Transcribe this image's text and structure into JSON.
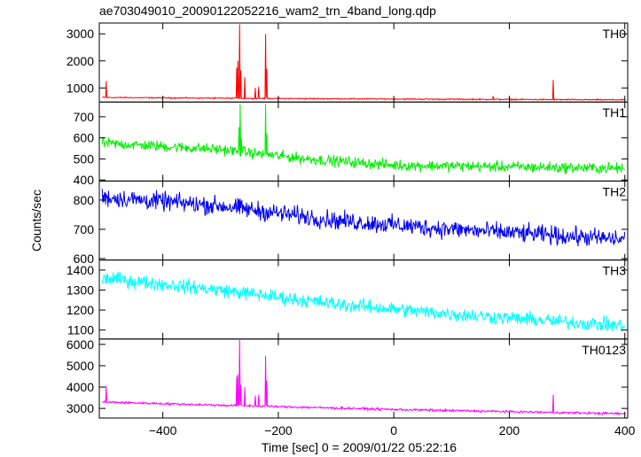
{
  "chart_data": {
    "type": "line",
    "title": "ae703049010_20090122052216_wam2_trn_4band_long.qdp",
    "xlabel": "Time [sec] 0 = 2009/01/22 05:22:16",
    "ylabel": "Counts/sec",
    "xlim": [
      -510,
      405
    ],
    "xticks": [
      -400,
      -200,
      0,
      200,
      400
    ],
    "xtick_labels": [
      "−400",
      "−200",
      "0",
      "200",
      "400"
    ],
    "panels": [
      {
        "name": "TH0",
        "color": "#ff0000",
        "ylim": [
          480,
          3400
        ],
        "yticks": [
          1000,
          2000,
          3000
        ],
        "trend": [
          [
            -505,
            650
          ],
          [
            -300,
            620
          ],
          [
            0,
            590
          ],
          [
            400,
            560
          ]
        ],
        "noise": 18,
        "spikes": [
          {
            "x": -498,
            "y": 1250
          },
          {
            "x": -272,
            "y": 1750
          },
          {
            "x": -270,
            "y": 2000
          },
          {
            "x": -267,
            "y": 3350
          },
          {
            "x": -265,
            "y": 1650
          },
          {
            "x": -258,
            "y": 1400
          },
          {
            "x": -240,
            "y": 1000
          },
          {
            "x": -234,
            "y": 1050
          },
          {
            "x": -222,
            "y": 3000
          },
          {
            "x": -220,
            "y": 1700
          },
          {
            "x": 172,
            "y": 700
          },
          {
            "x": 276,
            "y": 1300
          }
        ]
      },
      {
        "name": "TH1",
        "color": "#00ee00",
        "ylim": [
          395,
          770
        ],
        "yticks": [
          400,
          500,
          600,
          700
        ],
        "trend": [
          [
            -505,
            575
          ],
          [
            -300,
            545
          ],
          [
            -150,
            500
          ],
          [
            0,
            470
          ],
          [
            400,
            455
          ]
        ],
        "noise": 22,
        "spikes": [
          {
            "x": -268,
            "y": 650
          },
          {
            "x": -266,
            "y": 760
          },
          {
            "x": -264,
            "y": 600
          },
          {
            "x": -222,
            "y": 760
          },
          {
            "x": -220,
            "y": 620
          }
        ]
      },
      {
        "name": "TH2",
        "color": "#0000ee",
        "ylim": [
          595,
          865
        ],
        "yticks": [
          600,
          700,
          800
        ],
        "trend": [
          [
            -505,
            810
          ],
          [
            -300,
            780
          ],
          [
            -100,
            730
          ],
          [
            100,
            700
          ],
          [
            400,
            665
          ]
        ],
        "noise": 27,
        "spikes": []
      },
      {
        "name": "TH3",
        "color": "#00ffff",
        "ylim": [
          1055,
          1450
        ],
        "yticks": [
          1100,
          1200,
          1300,
          1400
        ],
        "trend": [
          [
            -505,
            1360
          ],
          [
            -300,
            1300
          ],
          [
            -100,
            1230
          ],
          [
            100,
            1180
          ],
          [
            400,
            1120
          ]
        ],
        "noise": 30,
        "spikes": []
      },
      {
        "name": "TH0123",
        "color": "#ff00ff",
        "ylim": [
          2550,
          6250
        ],
        "yticks": [
          3000,
          4000,
          5000,
          6000
        ],
        "trend": [
          [
            -505,
            3300
          ],
          [
            -300,
            3150
          ],
          [
            0,
            2950
          ],
          [
            400,
            2750
          ]
        ],
        "noise": 45,
        "spikes": [
          {
            "x": -498,
            "y": 4050
          },
          {
            "x": -272,
            "y": 4500
          },
          {
            "x": -270,
            "y": 4600
          },
          {
            "x": -267,
            "y": 6200
          },
          {
            "x": -265,
            "y": 4100
          },
          {
            "x": -258,
            "y": 4000
          },
          {
            "x": -240,
            "y": 3600
          },
          {
            "x": -234,
            "y": 3650
          },
          {
            "x": -222,
            "y": 5450
          },
          {
            "x": -220,
            "y": 4300
          },
          {
            "x": 276,
            "y": 3650
          }
        ]
      }
    ]
  }
}
